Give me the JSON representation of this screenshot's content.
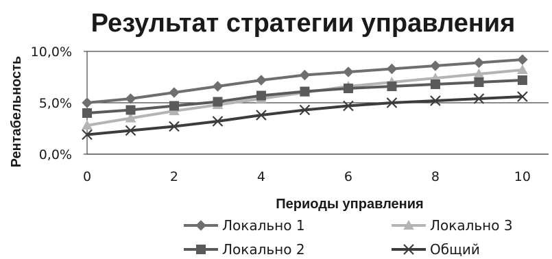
{
  "chart_data": {
    "type": "line",
    "title": "Результат стратегии управления",
    "xlabel": "Периоды управления",
    "ylabel": "Рентабельность",
    "x": [
      0,
      1,
      2,
      3,
      4,
      5,
      6,
      7,
      8,
      9,
      10
    ],
    "xticks": [
      "0",
      "2",
      "4",
      "6",
      "8",
      "10"
    ],
    "xtick_values": [
      0,
      2,
      4,
      6,
      8,
      10
    ],
    "yticks": [
      "0,0%",
      "5,0%",
      "10,0%"
    ],
    "ytick_values": [
      0,
      5,
      10
    ],
    "xlim": [
      0,
      10.6
    ],
    "ylim": [
      0,
      10
    ],
    "grid": "horizontal",
    "legend_position": "bottom",
    "series": [
      {
        "name": "Локально 1",
        "marker": "diamond",
        "color": "#6e6e6e",
        "values": [
          5.0,
          5.4,
          6.0,
          6.6,
          7.2,
          7.7,
          8.0,
          8.3,
          8.6,
          8.9,
          9.2
        ]
      },
      {
        "name": "Локально 2",
        "marker": "square",
        "color": "#5a5a5a",
        "values": [
          4.0,
          4.3,
          4.7,
          5.1,
          5.7,
          6.1,
          6.4,
          6.6,
          6.8,
          7.0,
          7.2
        ]
      },
      {
        "name": "Локально 3",
        "marker": "triangle",
        "color": "#b4b4b4",
        "values": [
          2.8,
          3.5,
          4.2,
          4.8,
          5.4,
          6.0,
          6.6,
          7.0,
          7.4,
          7.8,
          8.2
        ]
      },
      {
        "name": "Общий",
        "marker": "x",
        "color": "#3c3c3c",
        "values": [
          1.9,
          2.3,
          2.7,
          3.2,
          3.8,
          4.3,
          4.7,
          5.0,
          5.2,
          5.4,
          5.6
        ]
      }
    ]
  }
}
